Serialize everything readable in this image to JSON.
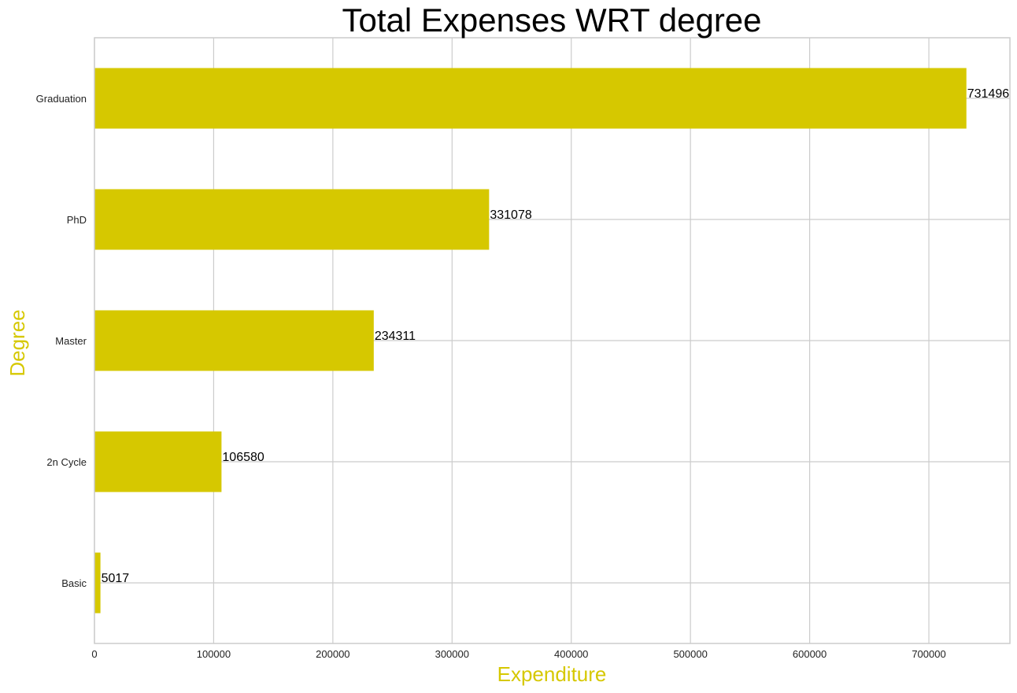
{
  "chart_data": {
    "type": "bar",
    "orientation": "horizontal",
    "title": "Total Expenses WRT degree",
    "xlabel": "Expenditure",
    "ylabel": "Degree",
    "categories": [
      "Graduation",
      "PhD",
      "Master",
      "2n Cycle",
      "Basic"
    ],
    "values": [
      731496,
      331078,
      234311,
      106580,
      5017
    ],
    "data_labels": [
      "731496",
      "331078",
      "234311",
      "106580",
      "5017"
    ],
    "xlim": [
      0,
      768000
    ],
    "x_ticks": [
      0,
      100000,
      200000,
      300000,
      400000,
      500000,
      600000,
      700000
    ],
    "x_tick_labels": [
      "0",
      "100000",
      "200000",
      "300000",
      "400000",
      "500000",
      "600000",
      "700000"
    ],
    "grid": true,
    "colors": {
      "bar": "#d6c800",
      "axis_label": "#d6c800",
      "grid": "#cccccc",
      "frame": "#cccccc"
    }
  }
}
